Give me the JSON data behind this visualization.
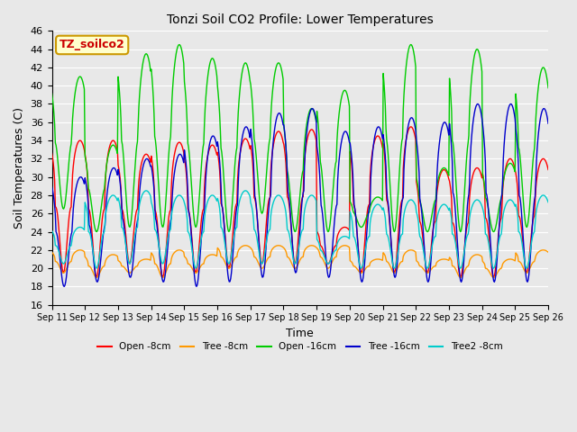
{
  "title": "Tonzi Soil CO2 Profile: Lower Temperatures",
  "xlabel": "Time",
  "ylabel": "Soil Temperatures (C)",
  "ylim": [
    16,
    46
  ],
  "xlim": [
    0,
    15
  ],
  "annotation": "TZ_soilco2",
  "annotation_color": "#cc0000",
  "annotation_bg": "#ffffcc",
  "annotation_border": "#cc9900",
  "series_colors": {
    "open8": "#ff0000",
    "tree8": "#ff9900",
    "open16": "#00cc00",
    "tree16": "#0000cc",
    "tree2_8": "#00cccc"
  },
  "legend_labels": [
    "Open -8cm",
    "Tree -8cm",
    "Open -16cm",
    "Tree -16cm",
    "Tree2 -8cm"
  ],
  "legend_colors": [
    "#ff0000",
    "#ff9900",
    "#00cc00",
    "#0000cc",
    "#00cccc"
  ],
  "x_tick_labels": [
    "Sep 11",
    "Sep 12",
    "Sep 13",
    "Sep 14",
    "Sep 15",
    "Sep 16",
    "Sep 17",
    "Sep 18",
    "Sep 19",
    "Sep 20",
    "Sep 21",
    "Sep 22",
    "Sep 23",
    "Sep 24",
    "Sep 25",
    "Sep 26"
  ],
  "background_color": "#e8e8e8",
  "grid_color": "#ffffff",
  "open8_peaks": [
    34.0,
    34.0,
    32.5,
    33.8,
    33.5,
    34.2,
    35.0,
    35.2,
    24.5,
    34.5,
    35.5,
    30.8,
    31.0,
    32.0,
    32.0,
    31.5
  ],
  "open8_troughs": [
    19.5,
    19.0,
    20.5,
    19.0,
    19.5,
    20.0,
    20.5,
    20.5,
    20.5,
    19.5,
    19.5,
    19.5,
    19.0,
    19.0,
    19.5,
    19.5
  ],
  "tree8_peaks": [
    22.0,
    21.5,
    21.0,
    22.0,
    21.5,
    22.5,
    22.5,
    22.5,
    22.5,
    21.0,
    22.0,
    21.0,
    21.5,
    21.0,
    22.0,
    22.0
  ],
  "tree8_troughs": [
    19.5,
    19.0,
    19.5,
    19.0,
    19.5,
    20.0,
    20.0,
    20.0,
    20.0,
    19.5,
    19.5,
    19.5,
    19.0,
    19.0,
    19.5,
    19.5
  ],
  "open16_peaks": [
    41.0,
    33.5,
    43.5,
    44.5,
    43.0,
    42.5,
    42.5,
    37.5,
    39.5,
    27.8,
    44.5,
    31.0,
    44.0,
    31.5,
    42.0,
    31.0
  ],
  "open16_troughs": [
    26.5,
    24.0,
    24.5,
    24.5,
    24.5,
    24.0,
    26.0,
    24.0,
    24.0,
    24.5,
    24.0,
    24.0,
    24.0,
    24.0,
    24.5,
    24.5
  ],
  "tree16_peaks": [
    30.0,
    31.0,
    32.0,
    32.5,
    34.5,
    35.5,
    37.0,
    37.5,
    35.0,
    35.5,
    36.5,
    36.0,
    38.0,
    38.0,
    37.5,
    37.0
  ],
  "tree16_troughs": [
    18.0,
    18.5,
    19.0,
    18.5,
    18.0,
    18.5,
    19.0,
    19.5,
    19.0,
    18.5,
    19.0,
    18.5,
    18.5,
    18.5,
    18.5,
    18.5
  ],
  "tree2_8_peaks": [
    24.5,
    28.0,
    28.5,
    28.0,
    28.0,
    28.5,
    28.0,
    28.0,
    23.5,
    27.0,
    27.5,
    27.0,
    27.5,
    27.5,
    28.0,
    28.0
  ],
  "tree2_8_troughs": [
    20.5,
    20.0,
    20.5,
    20.5,
    20.0,
    20.5,
    20.5,
    20.5,
    20.5,
    20.0,
    20.0,
    20.0,
    20.0,
    20.0,
    20.0,
    20.0
  ]
}
